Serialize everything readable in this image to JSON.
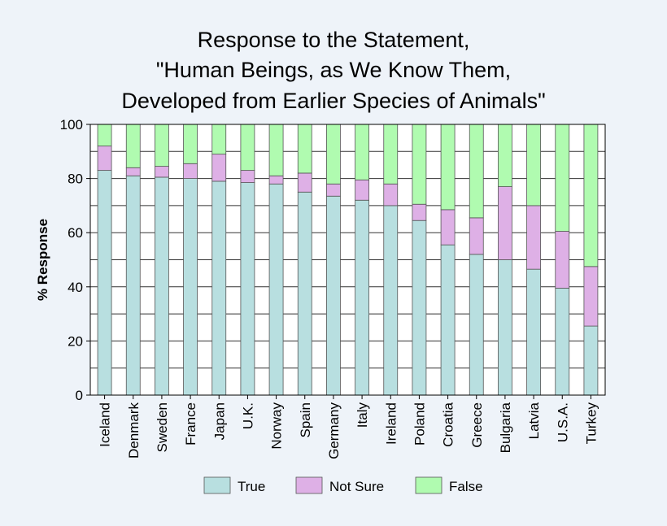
{
  "chart_data": {
    "type": "bar",
    "stacked": true,
    "title": [
      "Response to the Statement,",
      "\"Human Beings, as We Know Them,",
      "Developed from Earlier Species of Animals\""
    ],
    "xlabel": "",
    "ylabel": "% Response",
    "ylim": [
      0,
      100
    ],
    "yticks": [
      0,
      20,
      40,
      60,
      80,
      100
    ],
    "minor_grid_step": 10,
    "grid": true,
    "legend_position": "bottom-center",
    "categories": [
      "Iceland",
      "Denmark",
      "Sweden",
      "France",
      "Japan",
      "U.K.",
      "Norway",
      "Spain",
      "Germany",
      "Italy",
      "Ireland",
      "Poland",
      "Croatia",
      "Greece",
      "Bulgaria",
      "Latvia",
      "U.S.A.",
      "Turkey"
    ],
    "series": [
      {
        "name": "True",
        "color": "#b8dfe0",
        "values": [
          83,
          81,
          80.5,
          80,
          79,
          78.5,
          78,
          75,
          73.5,
          72,
          70,
          64.5,
          55.5,
          52,
          50,
          46.5,
          39.5,
          25.5
        ]
      },
      {
        "name": "Not Sure",
        "color": "#deb0e6",
        "values": [
          9,
          3,
          4,
          5.5,
          10,
          4.5,
          3,
          7,
          4.5,
          7.5,
          8,
          6,
          13,
          13.5,
          27,
          23.5,
          21,
          22
        ]
      },
      {
        "name": "False",
        "color": "#b0fbb0",
        "values": [
          8,
          16,
          15.5,
          14.5,
          11,
          17,
          19,
          18,
          22,
          20.5,
          22,
          29.5,
          31.5,
          34.5,
          23,
          30,
          39.5,
          52.5
        ]
      }
    ]
  }
}
